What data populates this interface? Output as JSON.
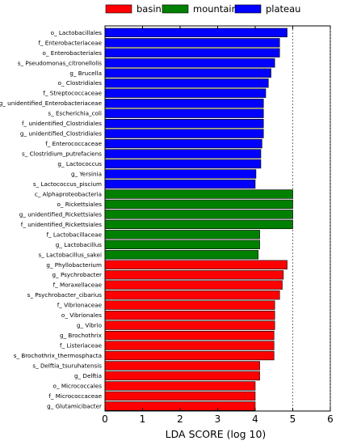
{
  "chart_data": {
    "type": "bar",
    "orientation": "horizontal",
    "xlabel": "LDA SCORE (log 10)",
    "xlim": [
      0,
      6
    ],
    "xticks": [
      "0",
      "1",
      "2",
      "3",
      "4",
      "5",
      "6"
    ],
    "reference_lines": [
      5,
      6
    ],
    "legend_position": "top",
    "legend": [
      {
        "name": "basin",
        "color": "#ff0000"
      },
      {
        "name": "mountains",
        "color": "#008000"
      },
      {
        "name": "plateau",
        "color": "#0000ff"
      }
    ],
    "bars": [
      {
        "label": "o_ Lactobacillales",
        "value": 4.85,
        "group": "plateau"
      },
      {
        "label": "f_ Enterobacteriaceae",
        "value": 4.65,
        "group": "plateau"
      },
      {
        "label": "o_ Enterobacteriales",
        "value": 4.65,
        "group": "plateau"
      },
      {
        "label": "s_ Pseudomonas_citronellolis",
        "value": 4.52,
        "group": "plateau"
      },
      {
        "label": "g_ Brucella",
        "value": 4.42,
        "group": "plateau"
      },
      {
        "label": "o_ Clostridiales",
        "value": 4.35,
        "group": "plateau"
      },
      {
        "label": "f_ Streptococcaceae",
        "value": 4.28,
        "group": "plateau"
      },
      {
        "label": "g_ unidentified_Enterobacteriaceae",
        "value": 4.22,
        "group": "plateau"
      },
      {
        "label": "s_ Escherichia_coli",
        "value": 4.22,
        "group": "plateau"
      },
      {
        "label": "f_ unidentified_Clostridiales",
        "value": 4.22,
        "group": "plateau"
      },
      {
        "label": "g_ unidentified_Clostridiales",
        "value": 4.22,
        "group": "plateau"
      },
      {
        "label": "f_ Enterococcaceae",
        "value": 4.18,
        "group": "plateau"
      },
      {
        "label": "s_ Clostridium_putrefaciens",
        "value": 4.15,
        "group": "plateau"
      },
      {
        "label": "g_ Lactococcus",
        "value": 4.15,
        "group": "plateau"
      },
      {
        "label": "g_ Yersinia",
        "value": 4.02,
        "group": "plateau"
      },
      {
        "label": "s_ Lactococcus_piscium",
        "value": 4.0,
        "group": "plateau"
      },
      {
        "label": "c_ Alphaproteobacteria",
        "value": 5.0,
        "group": "mountains"
      },
      {
        "label": "o_ Rickettsiales",
        "value": 5.0,
        "group": "mountains"
      },
      {
        "label": "g_ unidentified_Rickettsiales",
        "value": 5.0,
        "group": "mountains"
      },
      {
        "label": "f_ unidentified_Rickettsiales",
        "value": 5.0,
        "group": "mountains"
      },
      {
        "label": "f_ Lactobacillaceae",
        "value": 4.12,
        "group": "mountains"
      },
      {
        "label": "g_ Lactobacillus",
        "value": 4.12,
        "group": "mountains"
      },
      {
        "label": "s_ Lactobacillus_sakei",
        "value": 4.08,
        "group": "mountains"
      },
      {
        "label": "g_ Phyllobacterium",
        "value": 4.85,
        "group": "basin"
      },
      {
        "label": "g_ Psychrobacter",
        "value": 4.75,
        "group": "basin"
      },
      {
        "label": "f_ Moraxellaceae",
        "value": 4.72,
        "group": "basin"
      },
      {
        "label": "s_ Psychrobacter_cibarius",
        "value": 4.65,
        "group": "basin"
      },
      {
        "label": "f_ Vibrionaceae",
        "value": 4.52,
        "group": "basin"
      },
      {
        "label": "o_ Vibrionales",
        "value": 4.52,
        "group": "basin"
      },
      {
        "label": "g_ Vibrio",
        "value": 4.52,
        "group": "basin"
      },
      {
        "label": "g_ Brochothrix",
        "value": 4.5,
        "group": "basin"
      },
      {
        "label": "f_ Listeriaceae",
        "value": 4.5,
        "group": "basin"
      },
      {
        "label": "s_ Brochothrix_thermosphacta",
        "value": 4.5,
        "group": "basin"
      },
      {
        "label": "s_ Delftia_tsuruhatensis",
        "value": 4.12,
        "group": "basin"
      },
      {
        "label": "g_ Delftia",
        "value": 4.12,
        "group": "basin"
      },
      {
        "label": "o_ Micrococcales",
        "value": 4.0,
        "group": "basin"
      },
      {
        "label": "f_ Micrococcaceae",
        "value": 4.0,
        "group": "basin"
      },
      {
        "label": "g_ Glutamicibacter",
        "value": 4.0,
        "group": "basin"
      }
    ]
  }
}
